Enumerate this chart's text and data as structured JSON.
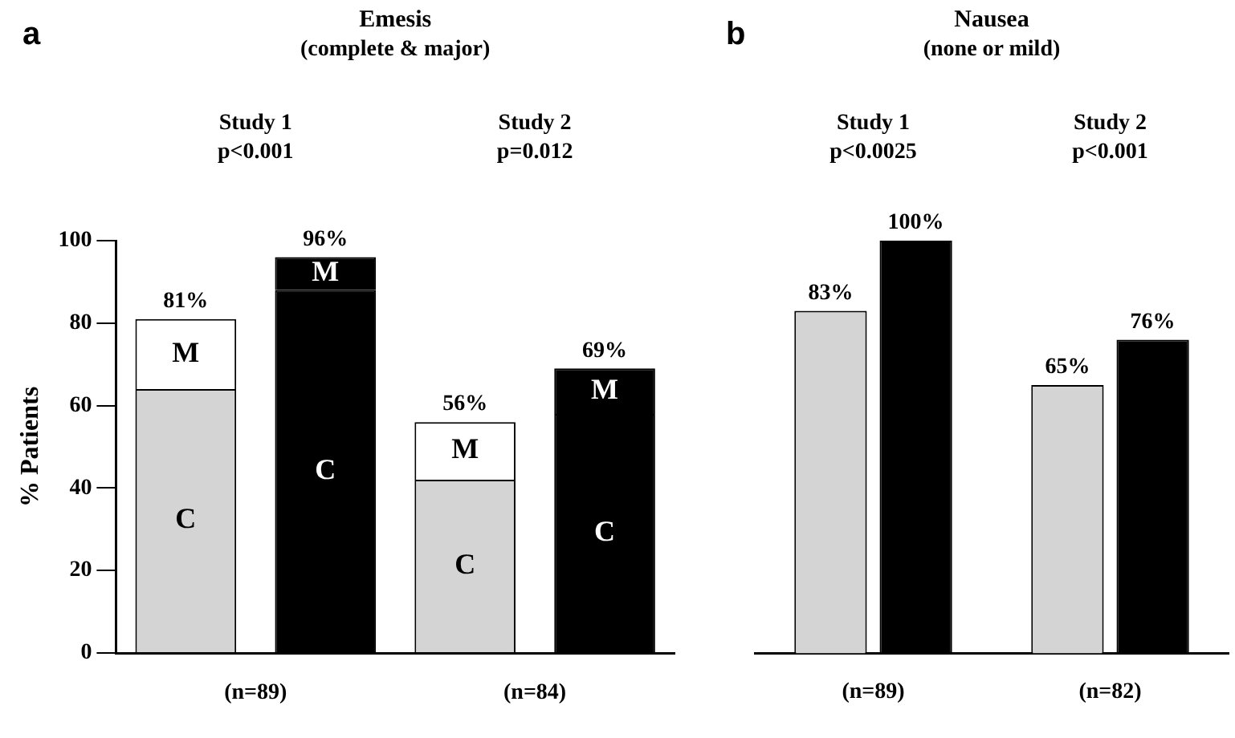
{
  "chart_data": [
    {
      "type": "bar",
      "title": "Emesis",
      "subtitle": "(complete & major)",
      "ylabel": "% Patients",
      "categories": [
        null,
        null,
        null,
        null
      ],
      "stacked": true,
      "series": [
        {
          "name": "C",
          "colors": [
            "#d4d4d4",
            "#000000",
            "#d4d4d4",
            "#000000"
          ],
          "values": [
            64,
            88,
            42,
            58
          ]
        },
        {
          "name": "M",
          "colors": [
            "#ffffff",
            "#000000",
            "#ffffff",
            "#000000"
          ],
          "values": [
            17,
            8,
            14,
            11
          ]
        }
      ],
      "totals": [
        "81%",
        "96%",
        "56%",
        "69%"
      ],
      "ylim": [
        0,
        100
      ],
      "yticks": [
        0,
        20,
        40,
        60,
        80,
        100
      ],
      "grid": false,
      "legend": false,
      "annotations": [
        "a",
        "Study 1\np<0.001",
        "Study 2\np=0.012",
        "(n=89)",
        "(n=84)"
      ]
    },
    {
      "type": "bar",
      "title": "Nausea",
      "subtitle": "(none or mild)",
      "categories": [
        "(n=89)",
        "(n=82)"
      ],
      "series": [
        {
          "color": "#d4d4d4",
          "values": [
            83,
            65
          ],
          "value_labels": [
            "83%",
            "65%"
          ]
        },
        {
          "color": "#000000",
          "values": [
            100,
            76
          ],
          "value_labels": [
            "100%",
            "76%"
          ]
        }
      ],
      "ylim": [
        0,
        100
      ],
      "tick_labels": "x",
      "grid": false,
      "legend": false,
      "annotations": [
        "b",
        "Study 1\np<0.0025",
        "Study 2\np<0.001"
      ]
    }
  ]
}
